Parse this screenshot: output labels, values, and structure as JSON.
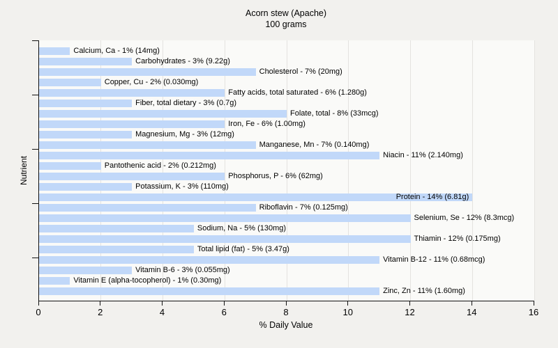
{
  "chart_data": {
    "type": "bar",
    "orientation": "horizontal",
    "title": "Acorn stew (Apache)",
    "subtitle": "100 grams",
    "xlabel": "% Daily Value",
    "ylabel": "Nutrient",
    "xlim": [
      0,
      16
    ],
    "xticks": [
      "0",
      "2",
      "4",
      "6",
      "8",
      "10",
      "12",
      "14",
      "16"
    ],
    "grid": "vertical gridlines at each x tick",
    "legend_position": "none",
    "bar_color": "#c1d8f9",
    "plot_bg_color": "#fafaf8",
    "page_bg_color": "#f2f1ee",
    "gridline_color": "#e4e3e0",
    "axis_color": "#111111",
    "bars": [
      {
        "name": "Calcium, Ca",
        "percent": 1,
        "amount": "14mg",
        "display": "Calcium, Ca - 1% (14mg)",
        "label_inside": false
      },
      {
        "name": "Carbohydrates",
        "percent": 3,
        "amount": "9.22g",
        "display": "Carbohydrates - 3% (9.22g)",
        "label_inside": false
      },
      {
        "name": "Cholesterol",
        "percent": 7,
        "amount": "20mg",
        "display": "Cholesterol - 7% (20mg)",
        "label_inside": false
      },
      {
        "name": "Copper, Cu",
        "percent": 2,
        "amount": "0.030mg",
        "display": "Copper, Cu - 2% (0.030mg)",
        "label_inside": false
      },
      {
        "name": "Fatty acids, total saturated",
        "percent": 6,
        "amount": "1.280g",
        "display": "Fatty acids, total saturated - 6% (1.280g)",
        "label_inside": false
      },
      {
        "name": "Fiber, total dietary",
        "percent": 3,
        "amount": "0.7g",
        "display": "Fiber, total dietary - 3% (0.7g)",
        "label_inside": false
      },
      {
        "name": "Folate, total",
        "percent": 8,
        "amount": "33mcg",
        "display": "Folate, total - 8% (33mcg)",
        "label_inside": false
      },
      {
        "name": "Iron, Fe",
        "percent": 6,
        "amount": "1.00mg",
        "display": "Iron, Fe - 6% (1.00mg)",
        "label_inside": false
      },
      {
        "name": "Magnesium, Mg",
        "percent": 3,
        "amount": "12mg",
        "display": "Magnesium, Mg - 3% (12mg)",
        "label_inside": false
      },
      {
        "name": "Manganese, Mn",
        "percent": 7,
        "amount": "0.140mg",
        "display": "Manganese, Mn - 7% (0.140mg)",
        "label_inside": false
      },
      {
        "name": "Niacin",
        "percent": 11,
        "amount": "2.140mg",
        "display": "Niacin - 11% (2.140mg)",
        "label_inside": false
      },
      {
        "name": "Pantothenic acid",
        "percent": 2,
        "amount": "0.212mg",
        "display": "Pantothenic acid - 2% (0.212mg)",
        "label_inside": false
      },
      {
        "name": "Phosphorus, P",
        "percent": 6,
        "amount": "62mg",
        "display": "Phosphorus, P - 6% (62mg)",
        "label_inside": false
      },
      {
        "name": "Potassium, K",
        "percent": 3,
        "amount": "110mg",
        "display": "Potassium, K - 3% (110mg)",
        "label_inside": false
      },
      {
        "name": "Protein",
        "percent": 14,
        "amount": "6.81g",
        "display": "Protein - 14% (6.81g)",
        "label_inside": true
      },
      {
        "name": "Riboflavin",
        "percent": 7,
        "amount": "0.125mg",
        "display": "Riboflavin - 7% (0.125mg)",
        "label_inside": false
      },
      {
        "name": "Selenium, Se",
        "percent": 12,
        "amount": "8.3mcg",
        "display": "Selenium, Se - 12% (8.3mcg)",
        "label_inside": false
      },
      {
        "name": "Sodium, Na",
        "percent": 5,
        "amount": "130mg",
        "display": "Sodium, Na - 5% (130mg)",
        "label_inside": false
      },
      {
        "name": "Thiamin",
        "percent": 12,
        "amount": "0.175mg",
        "display": "Thiamin - 12% (0.175mg)",
        "label_inside": false
      },
      {
        "name": "Total lipid (fat)",
        "percent": 5,
        "amount": "3.47g",
        "display": "Total lipid (fat) - 5% (3.47g)",
        "label_inside": false
      },
      {
        "name": "Vitamin B-12",
        "percent": 11,
        "amount": "0.68mcg",
        "display": "Vitamin B-12 - 11% (0.68mcg)",
        "label_inside": false
      },
      {
        "name": "Vitamin B-6",
        "percent": 3,
        "amount": "0.055mg",
        "display": "Vitamin B-6 - 3% (0.055mg)",
        "label_inside": false
      },
      {
        "name": "Vitamin E (alpha-tocopherol)",
        "percent": 1,
        "amount": "0.30mg",
        "display": "Vitamin E (alpha-tocopherol) - 1% (0.30mg)",
        "label_inside": false
      },
      {
        "name": "Zinc, Zn",
        "percent": 11,
        "amount": "1.60mg",
        "display": "Zinc, Zn - 11% (1.60mg)",
        "label_inside": false
      }
    ]
  }
}
